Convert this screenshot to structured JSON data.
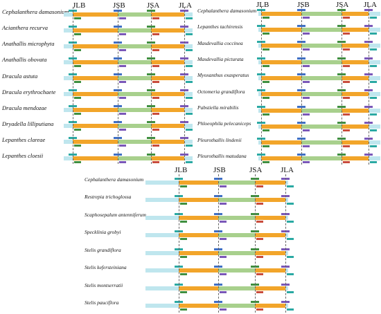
{
  "junction_labels": [
    "JLB",
    "JSB",
    "JSA",
    "JLA"
  ],
  "panels": [
    {
      "id": "top-left",
      "species": [
        "Cephalanthera damasonium",
        "Acianthera recurva",
        "Anathallis microphyta",
        "Anathallis obovata",
        "Dracula astuta",
        "Dracula erythrochaete",
        "Dracula mendozae",
        "Dryadella lilliputiana",
        "Lepanthes clareae",
        "Lepanthes cloesii"
      ]
    },
    {
      "id": "top-right",
      "species": [
        "Cephalanthera damasonium",
        "Lepanthes tachirensis",
        "Masdevallia coccinea",
        "Masdevallia picturata",
        "Myoxanthus exasperatus",
        "Octomeria grandiflora",
        "Pabstiella mirabilis",
        "Phloeophila pelecaniceps",
        "Pleurothallis lindenii",
        "Pleurothallis matudana"
      ]
    },
    {
      "id": "bottom",
      "species": [
        "Cephalanthera damasonium",
        "Restrepia trichoglossa",
        "Scaphosepalum antenniferum",
        "Specklinia grobyi",
        "Stelis grandiflora",
        "Stelis kefersteiniana",
        "Stelis montserratii",
        "Stelis pauciflora"
      ]
    }
  ],
  "colors": {
    "lsc": "#f2a52a",
    "ssc": "#a8d08d",
    "ira": "#bfe6ee",
    "gene_teal": "#2aa9a3",
    "gene_blue": "#3f6fc5",
    "gene_purple": "#7a57b8",
    "gene_red": "#c94b3b",
    "gene_green": "#3f8f3f"
  }
}
